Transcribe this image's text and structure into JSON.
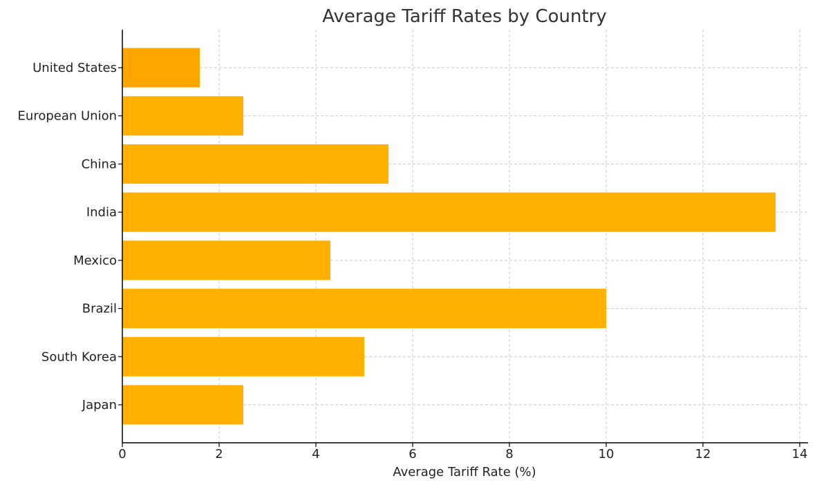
{
  "chart_data": {
    "type": "bar",
    "orientation": "horizontal",
    "title": "Average Tariff Rates by Country",
    "xlabel": "Average Tariff Rate (%)",
    "ylabel": "",
    "categories": [
      "United States",
      "European Union",
      "China",
      "India",
      "Mexico",
      "Brazil",
      "South Korea",
      "Japan"
    ],
    "values": [
      1.6,
      2.5,
      5.5,
      13.5,
      4.3,
      10.0,
      5.0,
      2.5
    ],
    "xlim": [
      0,
      14
    ],
    "xticks": [
      0,
      2,
      4,
      6,
      8,
      10,
      12,
      14
    ],
    "grid": true,
    "bar_color": "#FFB000",
    "highlight_color": "#FFA500",
    "highlight_category": "United States"
  }
}
